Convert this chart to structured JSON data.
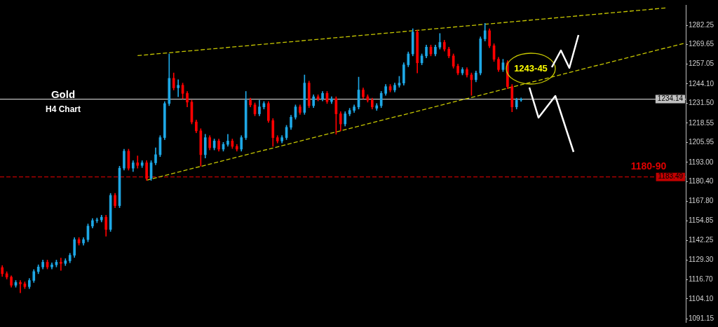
{
  "chart_data": {
    "type": "candlestick",
    "title": "Gold",
    "subtitle": "H4 Chart",
    "categories": [
      null,
      null,
      null,
      null,
      null,
      null,
      null,
      null,
      null,
      null,
      null,
      null,
      null,
      null,
      null,
      null,
      null,
      null,
      null,
      null,
      null,
      null,
      null,
      null,
      null,
      null,
      null,
      null,
      null,
      null,
      null,
      null,
      null,
      null,
      null,
      null,
      null,
      null,
      null,
      null,
      null,
      null,
      null,
      null,
      null,
      null,
      null,
      null,
      null,
      null,
      null,
      null,
      null,
      null,
      null,
      null,
      null,
      null,
      null,
      null,
      null,
      null,
      null,
      null,
      null,
      null,
      null,
      null,
      null,
      null,
      null,
      null,
      null,
      null,
      null,
      null,
      null,
      null,
      null,
      null,
      null,
      null,
      null,
      null,
      null,
      null,
      null,
      null,
      null,
      null,
      null,
      null,
      null,
      null,
      null,
      null,
      null,
      null,
      null,
      null,
      null,
      null,
      null,
      null,
      null,
      null,
      null,
      null,
      null,
      null,
      null,
      null,
      null,
      null,
      null,
      null,
      null,
      null,
      null,
      null,
      null,
      null,
      null,
      null,
      null,
      null,
      null,
      null,
      null,
      null,
      null,
      null,
      null,
      null,
      null,
      null,
      null,
      null,
      null,
      null,
      null,
      null,
      null,
      null,
      null,
      null,
      null,
      null,
      null,
      null,
      null,
      null
    ],
    "ohlc": [
      [
        1124.5,
        1125.8,
        1118.7,
        1120.5
      ],
      [
        1120.5,
        1121.8,
        1117.0,
        1118.3
      ],
      [
        1118.3,
        1119.2,
        1111.7,
        1113.0
      ],
      [
        1113.0,
        1116.1,
        1111.7,
        1114.8
      ],
      [
        1114.8,
        1116.1,
        1108.1,
        1113.9
      ],
      [
        1113.9,
        1115.2,
        1110.8,
        1112.1
      ],
      [
        1112.1,
        1117.4,
        1110.8,
        1116.1
      ],
      [
        1116.1,
        1123.2,
        1114.8,
        1121.9
      ],
      [
        1121.9,
        1126.3,
        1120.5,
        1124.9
      ],
      [
        1124.9,
        1129.4,
        1123.6,
        1128.0
      ],
      [
        1128.0,
        1129.4,
        1123.6,
        1124.9
      ],
      [
        1124.9,
        1127.6,
        1123.6,
        1126.3
      ],
      [
        1126.3,
        1129.4,
        1124.9,
        1128.0
      ],
      [
        1128.0,
        1130.7,
        1122.7,
        1127.2
      ],
      [
        1127.2,
        1130.3,
        1125.8,
        1128.9
      ],
      [
        1128.9,
        1133.8,
        1127.6,
        1132.5
      ],
      [
        1132.5,
        1144.0,
        1131.1,
        1142.7
      ],
      [
        1142.7,
        1144.0,
        1139.1,
        1140.5
      ],
      [
        1140.5,
        1144.0,
        1139.1,
        1142.7
      ],
      [
        1142.7,
        1152.9,
        1141.3,
        1151.5
      ],
      [
        1151.5,
        1156.4,
        1150.2,
        1155.1
      ],
      [
        1155.1,
        1156.8,
        1153.7,
        1155.5
      ],
      [
        1155.5,
        1158.6,
        1154.2,
        1157.3
      ],
      [
        1157.3,
        1158.6,
        1144.9,
        1149.3
      ],
      [
        1149.3,
        1172.8,
        1148.0,
        1171.5
      ],
      [
        1171.5,
        1172.8,
        1163.5,
        1164.8
      ],
      [
        1164.8,
        1190.5,
        1163.5,
        1189.2
      ],
      [
        1189.2,
        1201.6,
        1187.9,
        1200.3
      ],
      [
        1200.3,
        1201.6,
        1187.9,
        1189.2
      ],
      [
        1189.2,
        1194.1,
        1187.0,
        1192.7
      ],
      [
        1192.7,
        1197.2,
        1189.2,
        1191.0
      ],
      [
        1191.0,
        1194.1,
        1189.6,
        1192.7
      ],
      [
        1192.7,
        1194.1,
        1181.2,
        1182.5
      ],
      [
        1182.5,
        1194.1,
        1181.2,
        1192.7
      ],
      [
        1192.7,
        1202.5,
        1191.4,
        1198.0
      ],
      [
        1198.0,
        1210.4,
        1196.7,
        1209.1
      ],
      [
        1209.1,
        1232.6,
        1207.8,
        1231.3
      ],
      [
        1231.3,
        1263.6,
        1229.9,
        1247.7
      ],
      [
        1247.7,
        1251.2,
        1240.1,
        1241.5
      ],
      [
        1241.5,
        1246.8,
        1235.7,
        1243.2
      ],
      [
        1243.2,
        1244.6,
        1234.4,
        1237.9
      ],
      [
        1237.9,
        1239.2,
        1229.1,
        1232.2
      ],
      [
        1232.2,
        1233.5,
        1218.0,
        1219.3
      ],
      [
        1219.3,
        1220.6,
        1212.2,
        1213.5
      ],
      [
        1213.5,
        1214.9,
        1190.5,
        1198.0
      ],
      [
        1198.0,
        1211.3,
        1195.8,
        1209.1
      ],
      [
        1209.1,
        1210.4,
        1201.1,
        1202.5
      ],
      [
        1202.5,
        1208.2,
        1201.1,
        1206.9
      ],
      [
        1206.9,
        1208.2,
        1200.3,
        1201.6
      ],
      [
        1201.6,
        1206.0,
        1200.3,
        1204.7
      ],
      [
        1204.7,
        1211.3,
        1203.4,
        1206.9
      ],
      [
        1206.9,
        1208.2,
        1202.0,
        1203.4
      ],
      [
        1203.4,
        1204.7,
        1200.3,
        1201.6
      ],
      [
        1201.6,
        1210.4,
        1200.3,
        1209.1
      ],
      [
        1209.1,
        1239.2,
        1207.8,
        1233.5
      ],
      [
        1233.5,
        1234.8,
        1229.1,
        1230.4
      ],
      [
        1230.4,
        1231.7,
        1223.3,
        1224.6
      ],
      [
        1224.6,
        1233.5,
        1223.3,
        1229.1
      ],
      [
        1229.1,
        1232.6,
        1227.7,
        1231.3
      ],
      [
        1231.3,
        1232.6,
        1218.9,
        1220.2
      ],
      [
        1220.2,
        1221.5,
        1203.4,
        1209.1
      ],
      [
        1209.1,
        1210.4,
        1205.6,
        1206.9
      ],
      [
        1206.9,
        1210.4,
        1205.6,
        1209.1
      ],
      [
        1209.1,
        1217.1,
        1207.8,
        1215.8
      ],
      [
        1215.8,
        1223.7,
        1214.4,
        1222.4
      ],
      [
        1222.4,
        1230.4,
        1221.1,
        1229.1
      ],
      [
        1229.1,
        1230.4,
        1224.2,
        1225.5
      ],
      [
        1225.5,
        1249.9,
        1224.2,
        1244.6
      ],
      [
        1244.6,
        1245.9,
        1228.6,
        1229.9
      ],
      [
        1229.9,
        1237.0,
        1228.6,
        1235.7
      ],
      [
        1235.7,
        1237.0,
        1233.0,
        1234.4
      ],
      [
        1234.4,
        1239.2,
        1233.0,
        1237.9
      ],
      [
        1237.9,
        1239.2,
        1231.3,
        1232.6
      ],
      [
        1232.6,
        1235.7,
        1231.3,
        1234.4
      ],
      [
        1234.4,
        1235.7,
        1211.3,
        1224.6
      ],
      [
        1224.6,
        1226.0,
        1213.5,
        1218.0
      ],
      [
        1218.0,
        1226.0,
        1216.6,
        1224.6
      ],
      [
        1224.6,
        1228.2,
        1223.3,
        1226.8
      ],
      [
        1226.8,
        1230.4,
        1225.5,
        1229.1
      ],
      [
        1229.1,
        1248.5,
        1227.7,
        1240.1
      ],
      [
        1240.1,
        1241.5,
        1234.4,
        1235.7
      ],
      [
        1235.7,
        1237.0,
        1232.2,
        1233.5
      ],
      [
        1233.5,
        1234.8,
        1227.7,
        1229.1
      ],
      [
        1228.2,
        1231.3,
        1226.8,
        1229.9
      ],
      [
        1229.9,
        1239.2,
        1228.6,
        1237.9
      ],
      [
        1237.9,
        1243.7,
        1236.6,
        1242.3
      ],
      [
        1242.3,
        1243.7,
        1238.8,
        1240.1
      ],
      [
        1240.1,
        1244.6,
        1238.8,
        1243.2
      ],
      [
        1243.2,
        1249.0,
        1241.9,
        1244.6
      ],
      [
        1244.6,
        1257.8,
        1243.2,
        1256.5
      ],
      [
        1256.5,
        1264.9,
        1255.2,
        1263.6
      ],
      [
        1263.6,
        1280.0,
        1262.3,
        1277.8
      ],
      [
        1277.8,
        1279.1,
        1251.2,
        1257.8
      ],
      [
        1257.8,
        1263.6,
        1256.5,
        1262.3
      ],
      [
        1262.3,
        1269.4,
        1261.0,
        1268.0
      ],
      [
        1268.0,
        1269.4,
        1262.3,
        1263.6
      ],
      [
        1263.6,
        1269.4,
        1262.3,
        1268.0
      ],
      [
        1268.0,
        1276.9,
        1266.7,
        1271.1
      ],
      [
        1271.1,
        1272.5,
        1265.4,
        1266.7
      ],
      [
        1266.7,
        1268.0,
        1261.0,
        1262.3
      ],
      [
        1262.3,
        1263.6,
        1254.3,
        1255.6
      ],
      [
        1255.6,
        1257.0,
        1249.9,
        1251.2
      ],
      [
        1251.2,
        1254.7,
        1249.9,
        1253.4
      ],
      [
        1253.4,
        1254.7,
        1248.5,
        1249.9
      ],
      [
        1249.9,
        1251.2,
        1236.6,
        1246.8
      ],
      [
        1246.8,
        1252.5,
        1245.4,
        1251.2
      ],
      [
        1251.2,
        1274.7,
        1249.9,
        1273.4
      ],
      [
        1273.4,
        1283.5,
        1272.0,
        1278.7
      ],
      [
        1278.7,
        1280.0,
        1267.6,
        1268.9
      ],
      [
        1268.9,
        1270.2,
        1258.7,
        1260.1
      ],
      [
        1260.1,
        1261.4,
        1252.1,
        1253.4
      ],
      [
        1253.4,
        1260.1,
        1252.1,
        1257.8
      ],
      [
        1257.8,
        1259.2,
        1241.0,
        1242.3
      ],
      [
        1242.3,
        1243.7,
        1225.9,
        1229.1
      ],
      [
        1229.1,
        1234.8,
        1227.7,
        1233.5
      ],
      [
        1233.5,
        1235.0,
        1232.6,
        1234.14
      ],
      null,
      null,
      null,
      null,
      null,
      null,
      null,
      null,
      null,
      null,
      null,
      null,
      null,
      null,
      null,
      null,
      null,
      null,
      null,
      null,
      null,
      null,
      null,
      null,
      null,
      null,
      null,
      null,
      null,
      null,
      null,
      null,
      null,
      null,
      null,
      null
    ],
    "colors": [
      "#ff0000",
      "#ff0000",
      "#ff0000",
      "#1ea8e6",
      "#ff0000",
      "#ff0000",
      "#1ea8e6",
      "#1ea8e6",
      "#1ea8e6",
      "#1ea8e6",
      "#ff0000",
      "#1ea8e6",
      "#1ea8e6",
      "#ff0000",
      "#1ea8e6",
      "#1ea8e6",
      "#1ea8e6",
      "#ff0000",
      "#1ea8e6",
      "#1ea8e6",
      "#1ea8e6",
      "#1ea8e6",
      "#1ea8e6",
      "#ff0000",
      "#1ea8e6",
      "#ff0000",
      "#1ea8e6",
      "#1ea8e6",
      "#ff0000",
      "#1ea8e6",
      "#ff0000",
      "#1ea8e6",
      "#ff0000",
      "#1ea8e6",
      "#1ea8e6",
      "#1ea8e6",
      "#1ea8e6",
      "#1ea8e6",
      "#ff0000",
      "#1ea8e6",
      "#ff0000",
      "#ff0000",
      "#ff0000",
      "#ff0000",
      "#ff0000",
      "#1ea8e6",
      "#ff0000",
      "#1ea8e6",
      "#ff0000",
      "#1ea8e6",
      "#1ea8e6",
      "#ff0000",
      "#ff0000",
      "#1ea8e6",
      "#1ea8e6",
      "#ff0000",
      "#ff0000",
      "#1ea8e6",
      "#1ea8e6",
      "#ff0000",
      "#ff0000",
      "#ff0000",
      "#1ea8e6",
      "#1ea8e6",
      "#1ea8e6",
      "#1ea8e6",
      "#ff0000",
      "#1ea8e6",
      "#ff0000",
      "#1ea8e6",
      "#ff0000",
      "#1ea8e6",
      "#ff0000",
      "#1ea8e6",
      "#ff0000",
      "#ff0000",
      "#1ea8e6",
      "#1ea8e6",
      "#1ea8e6",
      "#1ea8e6",
      "#ff0000",
      "#ff0000",
      "#ff0000",
      "#1ea8e6",
      "#1ea8e6",
      "#1ea8e6",
      "#ff0000",
      "#1ea8e6",
      "#1ea8e6",
      "#1ea8e6",
      "#1ea8e6",
      "#1ea8e6",
      "#ff0000",
      "#1ea8e6",
      "#1ea8e6",
      "#ff0000",
      "#1ea8e6",
      "#1ea8e6",
      "#ff0000",
      "#ff0000",
      "#ff0000",
      "#ff0000",
      "#1ea8e6",
      "#ff0000",
      "#ff0000",
      "#1ea8e6",
      "#1ea8e6",
      "#1ea8e6",
      "#ff0000",
      "#ff0000",
      "#ff0000",
      "#1ea8e6",
      "#ff0000",
      "#ff0000",
      "#1ea8e6",
      "#1ea8e6",
      null,
      null,
      null,
      null,
      null,
      null,
      null,
      null,
      null,
      null,
      null,
      null,
      null,
      null,
      null,
      null,
      null,
      null,
      null,
      null,
      null,
      null,
      null,
      null,
      null,
      null,
      null,
      null,
      null,
      null,
      null,
      null,
      null,
      null,
      null,
      null
    ],
    "series": [
      {
        "type": "line",
        "color": "#c8c800",
        "line_style": "dashed",
        "values": [
          null,
          null,
          null,
          null,
          null,
          null,
          null,
          null,
          null,
          null,
          null,
          null,
          null,
          null,
          null,
          null,
          null,
          null,
          null,
          null,
          null,
          null,
          null,
          null,
          null,
          null,
          null,
          null,
          null,
          null,
          1262.5,
          null,
          null,
          null,
          null,
          null,
          null,
          null,
          null,
          null,
          null,
          null,
          null,
          null,
          null,
          null,
          null,
          null,
          null,
          null,
          null,
          null,
          null,
          null,
          null,
          null,
          null,
          null,
          null,
          null,
          null,
          null,
          null,
          null,
          null,
          null,
          null,
          null,
          null,
          null,
          null,
          null,
          null,
          null,
          null,
          null,
          null,
          null,
          null,
          null,
          null,
          null,
          null,
          null,
          null,
          null,
          null,
          null,
          null,
          null,
          null,
          null,
          null,
          null,
          null,
          null,
          null,
          null,
          null,
          null,
          null,
          null,
          null,
          null,
          null,
          null,
          null,
          null,
          null,
          null,
          null,
          null,
          null,
          null,
          null,
          null,
          null,
          null,
          null,
          null,
          null,
          null,
          null,
          null,
          null,
          null,
          null,
          null,
          null,
          null,
          null,
          null,
          null,
          null,
          null,
          null,
          null,
          null,
          null,
          null,
          null,
          null,
          null,
          null,
          null,
          null,
          null,
          1293.5,
          null,
          null,
          null,
          null
        ]
      },
      {
        "type": "line",
        "color": "#c8c800",
        "line_style": "dashed",
        "values": [
          null,
          null,
          null,
          null,
          null,
          null,
          null,
          null,
          null,
          null,
          null,
          null,
          null,
          null,
          null,
          null,
          null,
          null,
          null,
          null,
          null,
          null,
          null,
          null,
          null,
          null,
          null,
          null,
          null,
          null,
          null,
          null,
          1181.4,
          null,
          null,
          null,
          null,
          null,
          null,
          null,
          null,
          null,
          null,
          null,
          null,
          null,
          null,
          null,
          null,
          null,
          null,
          null,
          null,
          null,
          null,
          null,
          null,
          null,
          null,
          null,
          null,
          null,
          null,
          null,
          null,
          null,
          null,
          null,
          null,
          null,
          null,
          null,
          null,
          null,
          null,
          null,
          null,
          null,
          null,
          null,
          null,
          null,
          null,
          null,
          null,
          null,
          null,
          null,
          null,
          null,
          null,
          null,
          null,
          null,
          null,
          null,
          null,
          null,
          null,
          null,
          null,
          null,
          null,
          null,
          null,
          null,
          null,
          null,
          null,
          null,
          null,
          null,
          null,
          null,
          null,
          null,
          null,
          null,
          null,
          null,
          null,
          null,
          null,
          null,
          null,
          null,
          null,
          null,
          null,
          null,
          null,
          null,
          null,
          null,
          null,
          null,
          null,
          null,
          null,
          null,
          null,
          null,
          null,
          null,
          null,
          null,
          null,
          null,
          null,
          null,
          null,
          1270.4
        ]
      }
    ],
    "ref_lines": [
      {
        "axis": "y",
        "value": 1183.49,
        "label": "1183.49",
        "color": "#c00000",
        "line_style": "dashed"
      },
      {
        "axis": "y",
        "value": 1234.14,
        "label": "1234.14",
        "color": "#c0c0c0",
        "line_style": "solid"
      }
    ],
    "annotations": [
      "1243-45",
      "1180-90"
    ],
    "ylim": [
      1089,
      1295.5
    ],
    "yticks": [
      {
        "value": 1282.25,
        "label": "1282.25"
      },
      {
        "value": 1269.65,
        "label": "1269.65"
      },
      {
        "value": 1257.05,
        "label": "1257.05"
      },
      {
        "value": 1244.1,
        "label": "1244.10"
      },
      {
        "value": 1231.5,
        "label": "1231.50"
      },
      {
        "value": 1218.55,
        "label": "1218.55"
      },
      {
        "value": 1205.95,
        "label": "1205.95"
      },
      {
        "value": 1193,
        "label": "1193.00"
      },
      {
        "value": 1180.4,
        "label": "1180.40"
      },
      {
        "value": 1167.8,
        "label": "1167.80"
      },
      {
        "value": 1154.85,
        "label": "1154.85"
      },
      {
        "value": 1142.25,
        "label": "1142.25"
      },
      {
        "value": 1129.3,
        "label": "1129.30"
      },
      {
        "value": 1116.7,
        "label": "1116.70"
      },
      {
        "value": 1104.1,
        "label": "1104.10"
      },
      {
        "value": 1091.15,
        "label": "1091.15"
      }
    ],
    "tick_labels": "y",
    "grid": false,
    "legend": false
  }
}
